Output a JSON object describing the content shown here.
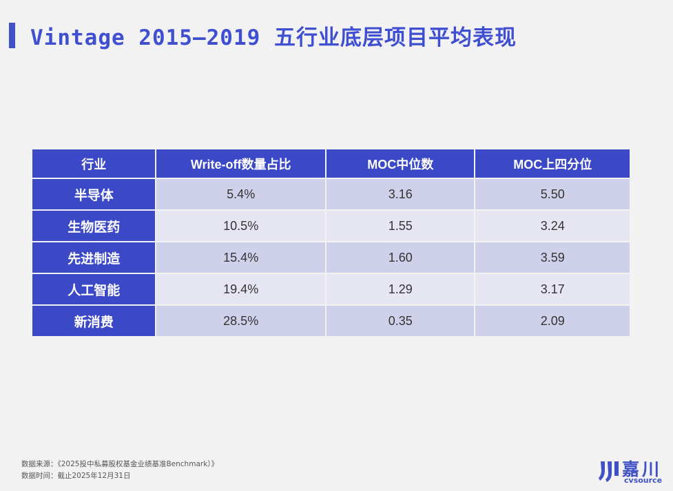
{
  "title": "Vintage 2015—2019 五行业底层项目平均表现",
  "table": {
    "headers": [
      "行业",
      "Write-off数量占比",
      "MOC中位数",
      "MOC上四分位"
    ],
    "rows": [
      {
        "industry": "半导体",
        "writeoff": "5.4%",
        "moc_median": "3.16",
        "moc_upper_quartile": "5.50"
      },
      {
        "industry": "生物医药",
        "writeoff": "10.5%",
        "moc_median": "1.55",
        "moc_upper_quartile": "3.24"
      },
      {
        "industry": "先进制造",
        "writeoff": "15.4%",
        "moc_median": "1.60",
        "moc_upper_quartile": "3.59"
      },
      {
        "industry": "人工智能",
        "writeoff": "19.4%",
        "moc_median": "1.29",
        "moc_upper_quartile": "3.17"
      },
      {
        "industry": "新消费",
        "writeoff": "28.5%",
        "moc_median": "0.35",
        "moc_upper_quartile": "2.09"
      }
    ]
  },
  "footer": {
    "source": "数据来源：《2025投中私募股权基金业绩基准Benchmark）》",
    "date": "数据时间：截止2025年12月31日"
  },
  "logo": {
    "name_cn": "嘉川",
    "name_en": "cvsource"
  },
  "colors": {
    "accent": "#3c49c6",
    "row_odd": "#cfd0ea",
    "row_even": "#e6e6f2",
    "background": "#f2f2f2"
  }
}
